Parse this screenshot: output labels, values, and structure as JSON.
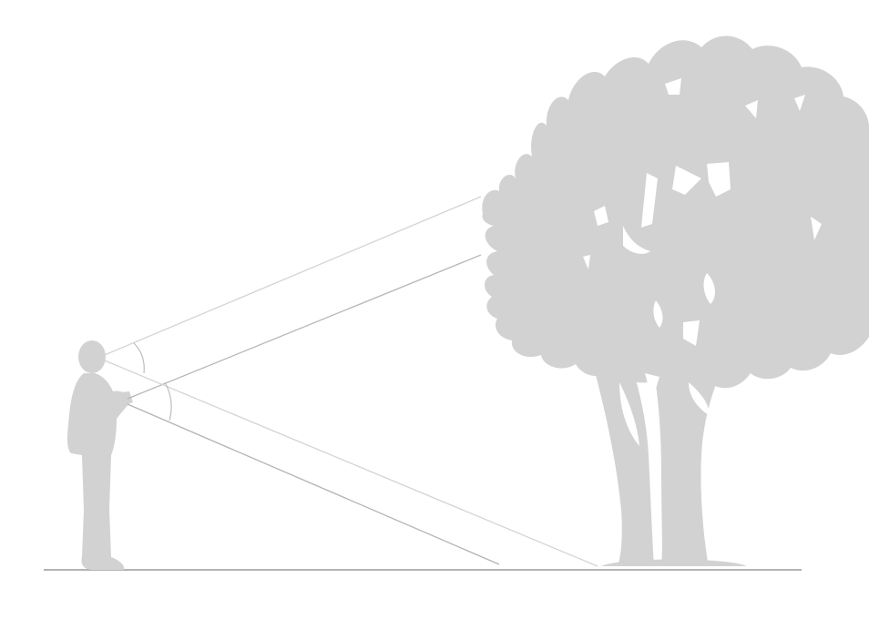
{
  "colors": {
    "background": "#ffffff",
    "silhouette": "#d2d2d2",
    "ground": "#9a9a9a",
    "sight_line_top": "#d4d4d4",
    "sight_line_bottom": "#b4b4b4",
    "angle_arc": "#bdbdbd"
  },
  "figures": {
    "person": "person-silhouette",
    "tree": "tree-silhouette",
    "ground": "ground-line"
  }
}
